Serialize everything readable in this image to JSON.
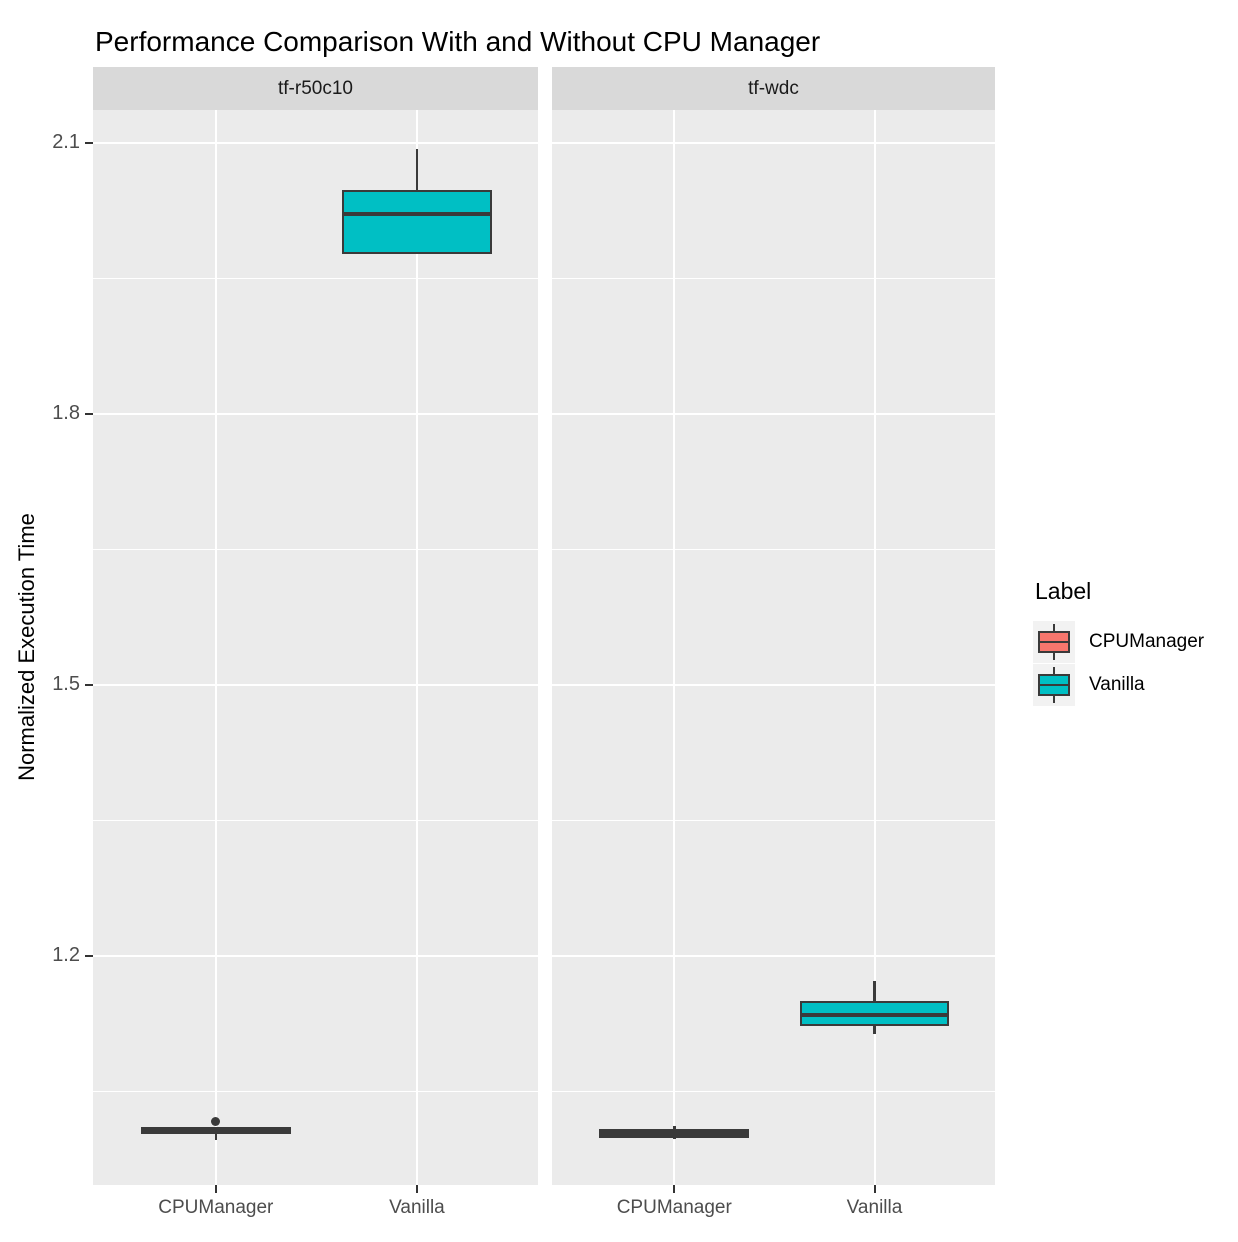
{
  "title": "Performance Comparison With and Without CPU Manager",
  "y_axis": {
    "title": "Normalized Execution Time"
  },
  "legend": {
    "title": "Label",
    "items": [
      {
        "label": "CPUManager",
        "color": "#F8766D"
      },
      {
        "label": "Vanilla",
        "color": "#00BFC4"
      }
    ]
  },
  "colors": {
    "panel_background": "#EBEBEB",
    "strip_background": "#D9D9D9",
    "gridline": "#FFFFFF",
    "box_border": "#3A3A3A",
    "cpumanager_fill": "#F8766D",
    "vanilla_fill": "#00BFC4",
    "axis_text": "#4D4D4D"
  },
  "chart_data": {
    "type": "boxplot",
    "title": "Performance Comparison With and Without CPU Manager",
    "xlabel": "",
    "ylabel": "Normalized Execution Time",
    "ylim": [
      0.947,
      2.136
    ],
    "y_major_ticks": [
      2.1,
      1.8,
      1.5,
      1.2
    ],
    "y_minor_ticks": [
      1.95,
      1.65,
      1.35,
      1.05
    ],
    "grid": "on",
    "legend_position": "right",
    "categories": [
      "CPUManager",
      "Vanilla"
    ],
    "facets": [
      {
        "name": "tf-r50c10",
        "boxes": [
          {
            "group": "CPUManager",
            "color": "#F8766D",
            "min": 0.997,
            "q1": 1.003,
            "median": 1.007,
            "q3": 1.011,
            "max": 1.011,
            "outliers": [
              1.017
            ]
          },
          {
            "group": "Vanilla",
            "color": "#00BFC4",
            "min": 1.977,
            "q1": 1.977,
            "median": 2.021,
            "q3": 2.047,
            "max": 2.093,
            "outliers": []
          }
        ]
      },
      {
        "name": "tf-wdc",
        "boxes": [
          {
            "group": "CPUManager",
            "color": "#F8766D",
            "min": 0.998,
            "q1": 0.999,
            "median": 1.004,
            "q3": 1.009,
            "max": 1.012,
            "outliers": []
          },
          {
            "group": "Vanilla",
            "color": "#00BFC4",
            "min": 1.114,
            "q1": 1.123,
            "median": 1.135,
            "q3": 1.151,
            "max": 1.173,
            "outliers": []
          }
        ]
      }
    ]
  }
}
